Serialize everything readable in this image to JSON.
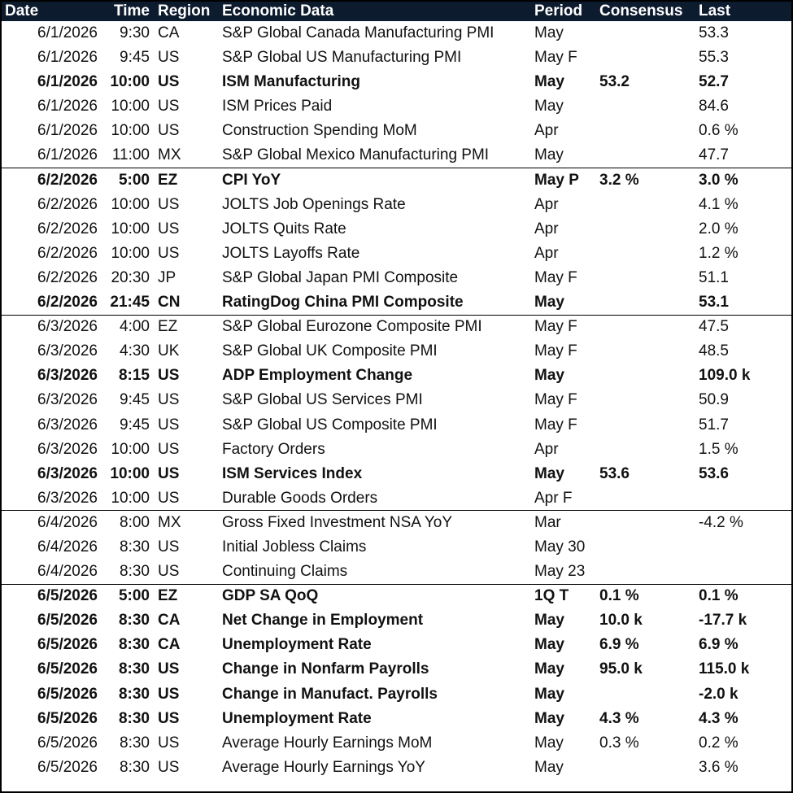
{
  "headers": {
    "date": "Date",
    "time": "Time",
    "region": "Region",
    "data": "Economic Data",
    "period": "Period",
    "consensus": "Consensus",
    "last": "Last"
  },
  "rows": [
    {
      "date": "6/1/2026",
      "time": "9:30",
      "region": "CA",
      "data": "S&P Global Canada Manufacturing PMI",
      "period": "May",
      "consensus": "",
      "last": "53.3",
      "bold": false
    },
    {
      "date": "6/1/2026",
      "time": "9:45",
      "region": "US",
      "data": "S&P Global US Manufacturing PMI",
      "period": "May F",
      "consensus": "",
      "last": "55.3",
      "bold": false
    },
    {
      "date": "6/1/2026",
      "time": "10:00",
      "region": "US",
      "data": "ISM Manufacturing",
      "period": "May",
      "consensus": "53.2",
      "last": "52.7",
      "bold": true
    },
    {
      "date": "6/1/2026",
      "time": "10:00",
      "region": "US",
      "data": "ISM Prices Paid",
      "period": "May",
      "consensus": "",
      "last": "84.6",
      "bold": false
    },
    {
      "date": "6/1/2026",
      "time": "10:00",
      "region": "US",
      "data": "Construction Spending MoM",
      "period": "Apr",
      "consensus": "",
      "last": "0.6 %",
      "bold": false
    },
    {
      "date": "6/1/2026",
      "time": "11:00",
      "region": "MX",
      "data": "S&P Global Mexico Manufacturing PMI",
      "period": "May",
      "consensus": "",
      "last": "47.7",
      "bold": false
    },
    {
      "date": "6/2/2026",
      "time": "5:00",
      "region": "EZ",
      "data": "CPI YoY",
      "period": "May P",
      "consensus": "3.2 %",
      "last": "3.0 %",
      "bold": true,
      "groupStart": true
    },
    {
      "date": "6/2/2026",
      "time": "10:00",
      "region": "US",
      "data": "JOLTS Job Openings Rate",
      "period": "Apr",
      "consensus": "",
      "last": "4.1 %",
      "bold": false
    },
    {
      "date": "6/2/2026",
      "time": "10:00",
      "region": "US",
      "data": "JOLTS Quits Rate",
      "period": "Apr",
      "consensus": "",
      "last": "2.0 %",
      "bold": false
    },
    {
      "date": "6/2/2026",
      "time": "10:00",
      "region": "US",
      "data": "JOLTS Layoffs Rate",
      "period": "Apr",
      "consensus": "",
      "last": "1.2 %",
      "bold": false
    },
    {
      "date": "6/2/2026",
      "time": "20:30",
      "region": "JP",
      "data": "S&P Global Japan PMI Composite",
      "period": "May F",
      "consensus": "",
      "last": "51.1",
      "bold": false
    },
    {
      "date": "6/2/2026",
      "time": "21:45",
      "region": "CN",
      "data": "RatingDog China PMI Composite",
      "period": "May",
      "consensus": "",
      "last": "53.1",
      "bold": true
    },
    {
      "date": "6/3/2026",
      "time": "4:00",
      "region": "EZ",
      "data": "S&P Global Eurozone Composite PMI",
      "period": "May F",
      "consensus": "",
      "last": "47.5",
      "bold": false,
      "groupStart": true
    },
    {
      "date": "6/3/2026",
      "time": "4:30",
      "region": "UK",
      "data": "S&P Global UK Composite PMI",
      "period": "May F",
      "consensus": "",
      "last": "48.5",
      "bold": false
    },
    {
      "date": "6/3/2026",
      "time": "8:15",
      "region": "US",
      "data": "ADP Employment Change",
      "period": "May",
      "consensus": "",
      "last": "109.0 k",
      "bold": true
    },
    {
      "date": "6/3/2026",
      "time": "9:45",
      "region": "US",
      "data": "S&P Global US Services PMI",
      "period": "May F",
      "consensus": "",
      "last": "50.9",
      "bold": false
    },
    {
      "date": "6/3/2026",
      "time": "9:45",
      "region": "US",
      "data": "S&P Global US Composite PMI",
      "period": "May F",
      "consensus": "",
      "last": "51.7",
      "bold": false
    },
    {
      "date": "6/3/2026",
      "time": "10:00",
      "region": "US",
      "data": "Factory Orders",
      "period": "Apr",
      "consensus": "",
      "last": "1.5 %",
      "bold": false
    },
    {
      "date": "6/3/2026",
      "time": "10:00",
      "region": "US",
      "data": "ISM Services Index",
      "period": "May",
      "consensus": "53.6",
      "last": "53.6",
      "bold": true
    },
    {
      "date": "6/3/2026",
      "time": "10:00",
      "region": "US",
      "data": "Durable Goods Orders",
      "period": "Apr F",
      "consensus": "",
      "last": "",
      "bold": false
    },
    {
      "date": "6/4/2026",
      "time": "8:00",
      "region": "MX",
      "data": "Gross Fixed Investment NSA YoY",
      "period": "Mar",
      "consensus": "",
      "last": "-4.2 %",
      "bold": false,
      "groupStart": true
    },
    {
      "date": "6/4/2026",
      "time": "8:30",
      "region": "US",
      "data": "Initial Jobless Claims",
      "period": "May 30",
      "consensus": "",
      "last": "",
      "bold": false
    },
    {
      "date": "6/4/2026",
      "time": "8:30",
      "region": "US",
      "data": "Continuing Claims",
      "period": "May 23",
      "consensus": "",
      "last": "",
      "bold": false
    },
    {
      "date": "6/5/2026",
      "time": "5:00",
      "region": "EZ",
      "data": "GDP SA QoQ",
      "period": "1Q T",
      "consensus": "0.1 %",
      "last": "0.1 %",
      "bold": true,
      "groupStart": true
    },
    {
      "date": "6/5/2026",
      "time": "8:30",
      "region": "CA",
      "data": "Net Change in Employment",
      "period": "May",
      "consensus": "10.0 k",
      "last": "-17.7 k",
      "bold": true
    },
    {
      "date": "6/5/2026",
      "time": "8:30",
      "region": "CA",
      "data": "Unemployment Rate",
      "period": "May",
      "consensus": "6.9 %",
      "last": "6.9 %",
      "bold": true
    },
    {
      "date": "6/5/2026",
      "time": "8:30",
      "region": "US",
      "data": "Change in Nonfarm Payrolls",
      "period": "May",
      "consensus": "95.0 k",
      "last": "115.0 k",
      "bold": true
    },
    {
      "date": "6/5/2026",
      "time": "8:30",
      "region": "US",
      "data": "Change in Manufact. Payrolls",
      "period": "May",
      "consensus": "",
      "last": "-2.0 k",
      "bold": true
    },
    {
      "date": "6/5/2026",
      "time": "8:30",
      "region": "US",
      "data": "Unemployment Rate",
      "period": "May",
      "consensus": "4.3 %",
      "last": "4.3 %",
      "bold": true
    },
    {
      "date": "6/5/2026",
      "time": "8:30",
      "region": "US",
      "data": "Average Hourly Earnings MoM",
      "period": "May",
      "consensus": "0.3 %",
      "last": "0.2 %",
      "bold": false
    },
    {
      "date": "6/5/2026",
      "time": "8:30",
      "region": "US",
      "data": "Average Hourly Earnings YoY",
      "period": "May",
      "consensus": "",
      "last": "3.6 %",
      "bold": false
    }
  ]
}
